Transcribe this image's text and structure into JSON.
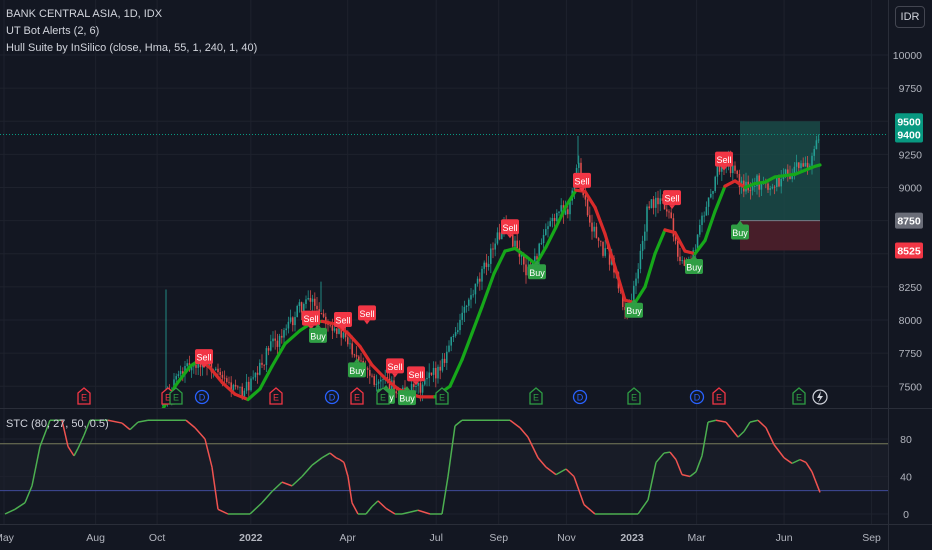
{
  "header": {
    "symbol": "BANK CENTRAL ASIA, 1D, IDX",
    "ind1": "UT Bot Alerts (2, 6)",
    "ind2": "Hull Suite by InSilico (close, Hma, 55, 1, 240, 1, 40)",
    "currency": "IDR"
  },
  "stc_label": "STC (80, 27, 50, 0.5)",
  "colors": {
    "background": "#131722",
    "grid": "#1e222d",
    "hull_up": "#16a81a",
    "hull_down": "#d92b2b",
    "candle_up": "#26a69a",
    "candle_down": "#ef5350",
    "sell": "#f23645",
    "buy": "#2f9e44",
    "stc_up": "#4caf50",
    "stc_down": "#ef5350",
    "level_upper": "#787b5a",
    "level_lower": "#3f4a9a",
    "target_zone": "#1a4a46",
    "stop_zone": "#4a1f2a"
  },
  "chart_data": [
    {
      "type": "candlestick",
      "title": "BANK CENTRAL ASIA, 1D, IDX",
      "yaxis_ticks": [
        7500,
        7750,
        8000,
        8250,
        8500,
        8750,
        9000,
        9250,
        9500,
        9750,
        10000
      ],
      "ylim": [
        7420,
        10050
      ],
      "price_tags": [
        {
          "label": "9500",
          "value": 9500,
          "color": "#089981"
        },
        {
          "label": "9400",
          "value": 9400,
          "color": "#089981"
        },
        {
          "label": "8750",
          "value": 8750,
          "color": "#6a6d78"
        },
        {
          "label": "8525",
          "value": 8525,
          "color": "#f23645"
        }
      ],
      "last_price": 9400,
      "xaxis_ticks": [
        "May",
        "Aug",
        "Oct",
        "2022",
        "Apr",
        "Jul",
        "Sep",
        "Nov",
        "2023",
        "Mar",
        "Jun",
        "Sep"
      ],
      "x_tick_index": [
        0,
        88,
        147,
        237,
        330,
        415,
        475,
        540,
        603,
        665,
        749,
        833
      ],
      "price_path": [
        [
          163,
          7350
        ],
        [
          175,
          7560
        ],
        [
          190,
          7650
        ],
        [
          205,
          7700
        ],
        [
          220,
          7560
        ],
        [
          240,
          7450
        ],
        [
          255,
          7550
        ],
        [
          270,
          7800
        ],
        [
          285,
          7900
        ],
        [
          300,
          8100
        ],
        [
          313,
          8150
        ],
        [
          322,
          8050
        ],
        [
          335,
          7950
        ],
        [
          345,
          7850
        ],
        [
          360,
          7720
        ],
        [
          375,
          7550
        ],
        [
          390,
          7500
        ],
        [
          405,
          7450
        ],
        [
          420,
          7480
        ],
        [
          440,
          7650
        ],
        [
          460,
          8000
        ],
        [
          480,
          8300
        ],
        [
          495,
          8600
        ],
        [
          505,
          8700
        ],
        [
          515,
          8580
        ],
        [
          528,
          8350
        ],
        [
          540,
          8550
        ],
        [
          555,
          8800
        ],
        [
          568,
          8850
        ],
        [
          578,
          9180
        ],
        [
          588,
          8800
        ],
        [
          600,
          8550
        ],
        [
          612,
          8450
        ],
        [
          625,
          8050
        ],
        [
          635,
          8250
        ],
        [
          648,
          8850
        ],
        [
          660,
          8900
        ],
        [
          670,
          8800
        ],
        [
          680,
          8450
        ],
        [
          690,
          8400
        ],
        [
          700,
          8700
        ],
        [
          710,
          8950
        ],
        [
          720,
          9180
        ],
        [
          732,
          9150
        ],
        [
          742,
          9000
        ],
        [
          755,
          9050
        ],
        [
          770,
          9000
        ],
        [
          785,
          9100
        ],
        [
          800,
          9150
        ],
        [
          812,
          9200
        ],
        [
          820,
          9400
        ]
      ],
      "hull_path": [
        [
          163,
          7330
        ],
        [
          175,
          7500
        ],
        [
          190,
          7650
        ],
        [
          200,
          7700
        ],
        [
          210,
          7640
        ],
        [
          222,
          7530
        ],
        [
          235,
          7440
        ],
        [
          248,
          7400
        ],
        [
          260,
          7480
        ],
        [
          272,
          7650
        ],
        [
          285,
          7820
        ],
        [
          300,
          7920
        ],
        [
          312,
          7980
        ],
        [
          322,
          7990
        ],
        [
          335,
          7970
        ],
        [
          348,
          7900
        ],
        [
          360,
          7800
        ],
        [
          372,
          7660
        ],
        [
          385,
          7560
        ],
        [
          398,
          7480
        ],
        [
          410,
          7440
        ],
        [
          420,
          7420
        ],
        [
          435,
          7420
        ],
        [
          450,
          7500
        ],
        [
          462,
          7700
        ],
        [
          472,
          7900
        ],
        [
          482,
          8100
        ],
        [
          494,
          8350
        ],
        [
          505,
          8520
        ],
        [
          515,
          8540
        ],
        [
          526,
          8480
        ],
        [
          536,
          8420
        ],
        [
          546,
          8550
        ],
        [
          556,
          8700
        ],
        [
          566,
          8860
        ],
        [
          576,
          8980
        ],
        [
          585,
          8970
        ],
        [
          595,
          8850
        ],
        [
          605,
          8650
        ],
        [
          615,
          8400
        ],
        [
          625,
          8150
        ],
        [
          635,
          8130
        ],
        [
          645,
          8250
        ],
        [
          655,
          8500
        ],
        [
          665,
          8680
        ],
        [
          675,
          8660
        ],
        [
          685,
          8520
        ],
        [
          695,
          8500
        ],
        [
          705,
          8600
        ],
        [
          715,
          8820
        ],
        [
          725,
          9010
        ],
        [
          735,
          9050
        ],
        [
          745,
          9000
        ],
        [
          755,
          9030
        ],
        [
          765,
          9040
        ],
        [
          775,
          9080
        ],
        [
          785,
          9090
        ],
        [
          795,
          9100
        ],
        [
          805,
          9130
        ],
        [
          815,
          9160
        ],
        [
          820,
          9170
        ]
      ],
      "hull_down_ranges": [
        [
          200,
          248
        ],
        [
          322,
          430
        ],
        [
          576,
          635
        ],
        [
          665,
          695
        ],
        [
          725,
          745
        ]
      ],
      "signals": [
        {
          "label": "Sell",
          "x": 204,
          "value": 7720
        },
        {
          "label": "Sell",
          "x": 311,
          "value": 8010
        },
        {
          "label": "Buy",
          "x": 318,
          "value": 7880
        },
        {
          "label": "Sell",
          "x": 343,
          "value": 8000
        },
        {
          "label": "Sell",
          "x": 367,
          "value": 8050
        },
        {
          "label": "Buy",
          "x": 357,
          "value": 7620
        },
        {
          "label": "Sell",
          "x": 395,
          "value": 7650
        },
        {
          "label": "Sell",
          "x": 416,
          "value": 7590
        },
        {
          "label": "Buy",
          "x": 386,
          "value": 7420
        },
        {
          "label": "Buy",
          "x": 407,
          "value": 7410
        },
        {
          "label": "Sell",
          "x": 510,
          "value": 8700
        },
        {
          "label": "Buy",
          "x": 537,
          "value": 8360
        },
        {
          "label": "Sell",
          "x": 582,
          "value": 9050
        },
        {
          "label": "Buy",
          "x": 634,
          "value": 8070
        },
        {
          "label": "Sell",
          "x": 672,
          "value": 8920
        },
        {
          "label": "Buy",
          "x": 694,
          "value": 8400
        },
        {
          "label": "Sell",
          "x": 724,
          "value": 9210
        },
        {
          "label": "Buy",
          "x": 740,
          "value": 8660
        }
      ],
      "events": [
        {
          "type": "E",
          "x": 84,
          "color": "#f23645"
        },
        {
          "type": "E",
          "x": 168,
          "color": "#f23645"
        },
        {
          "type": "E",
          "x": 176,
          "color": "#2f9e44"
        },
        {
          "type": "D",
          "x": 202,
          "color": "#2962ff"
        },
        {
          "type": "E",
          "x": 276,
          "color": "#f23645"
        },
        {
          "type": "D",
          "x": 332,
          "color": "#2962ff"
        },
        {
          "type": "E",
          "x": 357,
          "color": "#f23645"
        },
        {
          "type": "E",
          "x": 383,
          "color": "#2f9e44"
        },
        {
          "type": "E",
          "x": 442,
          "color": "#2f9e44"
        },
        {
          "type": "E",
          "x": 536,
          "color": "#2f9e44"
        },
        {
          "type": "D",
          "x": 580,
          "color": "#2962ff"
        },
        {
          "type": "E",
          "x": 634,
          "color": "#2f9e44"
        },
        {
          "type": "D",
          "x": 697,
          "color": "#2962ff"
        },
        {
          "type": "E",
          "x": 719,
          "color": "#f23645"
        },
        {
          "type": "E",
          "x": 799,
          "color": "#2f9e44"
        }
      ],
      "position": {
        "entry": 8750,
        "target": 9500,
        "stop": 8525,
        "x_start": 740,
        "x_end": 820
      }
    },
    {
      "type": "line",
      "title": "STC (80, 27, 50, 0.5)",
      "yaxis_ticks": [
        0,
        40,
        80
      ],
      "ylim": [
        -8,
        105
      ],
      "levels": [
        75,
        25
      ],
      "series": [
        {
          "values": [
            [
              5,
              0
            ],
            [
              15,
              5
            ],
            [
              25,
              12
            ],
            [
              32,
              30
            ],
            [
              40,
              72
            ],
            [
              50,
              100
            ],
            [
              62,
              100
            ],
            [
              68,
              72
            ],
            [
              74,
              62
            ],
            [
              78,
              70
            ],
            [
              84,
              84
            ],
            [
              90,
              100
            ],
            [
              108,
              100
            ],
            [
              122,
              97
            ],
            [
              130,
              90
            ],
            [
              138,
              98
            ],
            [
              148,
              100
            ],
            [
              170,
              100
            ],
            [
              186,
              100
            ],
            [
              195,
              92
            ],
            [
              205,
              80
            ],
            [
              212,
              50
            ],
            [
              218,
              5
            ],
            [
              228,
              0
            ],
            [
              250,
              0
            ],
            [
              262,
              12
            ],
            [
              272,
              24
            ],
            [
              282,
              34
            ],
            [
              292,
              30
            ],
            [
              302,
              40
            ],
            [
              312,
              52
            ],
            [
              322,
              60
            ],
            [
              330,
              65
            ],
            [
              336,
              60
            ],
            [
              340,
              58
            ],
            [
              344,
              55
            ],
            [
              348,
              40
            ],
            [
              352,
              12
            ],
            [
              358,
              0
            ],
            [
              366,
              0
            ],
            [
              372,
              8
            ],
            [
              378,
              14
            ],
            [
              386,
              6
            ],
            [
              395,
              0
            ],
            [
              402,
              0
            ],
            [
              410,
              2
            ],
            [
              418,
              4
            ],
            [
              430,
              0
            ],
            [
              442,
              0
            ],
            [
              448,
              40
            ],
            [
              455,
              94
            ],
            [
              462,
              100
            ],
            [
              510,
              100
            ],
            [
              520,
              92
            ],
            [
              528,
              82
            ],
            [
              538,
              60
            ],
            [
              546,
              50
            ],
            [
              556,
              42
            ],
            [
              566,
              48
            ],
            [
              574,
              40
            ],
            [
              584,
              10
            ],
            [
              595,
              0
            ],
            [
              612,
              0
            ],
            [
              622,
              0
            ],
            [
              638,
              0
            ],
            [
              648,
              15
            ],
            [
              656,
              55
            ],
            [
              664,
              65
            ],
            [
              670,
              66
            ],
            [
              676,
              58
            ],
            [
              682,
              42
            ],
            [
              690,
              40
            ],
            [
              696,
              45
            ],
            [
              702,
              62
            ],
            [
              708,
              98
            ],
            [
              716,
              100
            ],
            [
              726,
              98
            ],
            [
              732,
              90
            ],
            [
              738,
              82
            ],
            [
              744,
              88
            ],
            [
              750,
              98
            ],
            [
              758,
              100
            ],
            [
              766,
              92
            ],
            [
              774,
              74
            ],
            [
              784,
              60
            ],
            [
              792,
              54
            ],
            [
              800,
              58
            ],
            [
              806,
              55
            ],
            [
              812,
              45
            ],
            [
              820,
              23
            ]
          ]
        }
      ]
    }
  ]
}
